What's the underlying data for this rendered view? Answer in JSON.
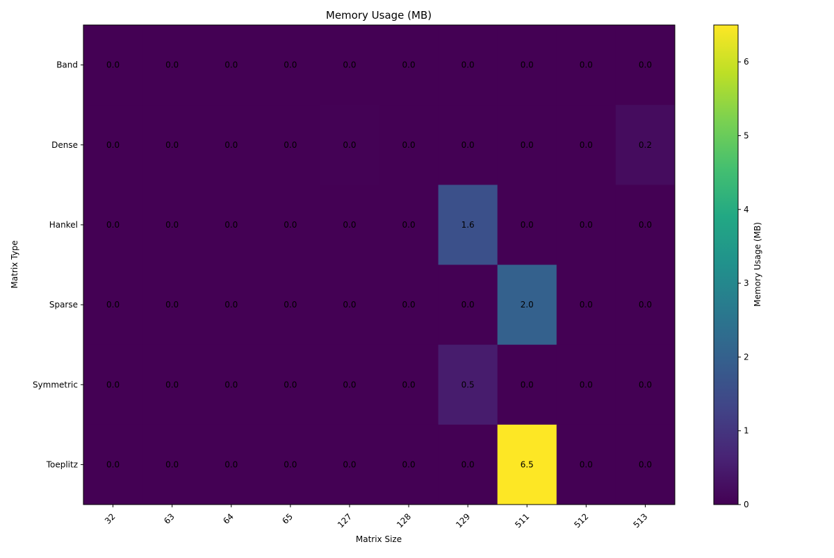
{
  "chart_data": {
    "type": "heatmap",
    "title": "Memory Usage (MB)",
    "xlabel": "Matrix Size",
    "ylabel": "Matrix Type",
    "x_categories": [
      "32",
      "63",
      "64",
      "65",
      "127",
      "128",
      "129",
      "511",
      "512",
      "513"
    ],
    "y_categories": [
      "Band",
      "Dense",
      "Hankel",
      "Sparse",
      "Symmetric",
      "Toeplitz"
    ],
    "values": [
      [
        0.0,
        0.0,
        0.0,
        0.0,
        0.0,
        0.0,
        0.0,
        0.0,
        0.0,
        0.0
      ],
      [
        0.0,
        0.0,
        0.0,
        0.0,
        0.02,
        0.0,
        0.0,
        0.0,
        0.0,
        0.2
      ],
      [
        0.0,
        0.0,
        0.0,
        0.0,
        0.0,
        0.0,
        1.6,
        0.0,
        0.0,
        0.0
      ],
      [
        0.0,
        0.0,
        0.0,
        0.0,
        0.0,
        0.0,
        0.0,
        2.0,
        0.0,
        0.0
      ],
      [
        0.0,
        0.0,
        0.0,
        0.0,
        0.0,
        0.0,
        0.5,
        0.0,
        0.0,
        0.0
      ],
      [
        0.0,
        0.0,
        0.0,
        0.0,
        0.0,
        0.0,
        0.0,
        6.5,
        0.0,
        0.0
      ]
    ],
    "value_format_decimals": 1,
    "colormap": "viridis",
    "colorbar": {
      "label": "Memory Usage (MB)",
      "range": [
        0,
        6.5
      ],
      "ticks": [
        0,
        1,
        2,
        3,
        4,
        5,
        6
      ]
    },
    "grid": false,
    "xtick_rotation_deg": 45
  }
}
